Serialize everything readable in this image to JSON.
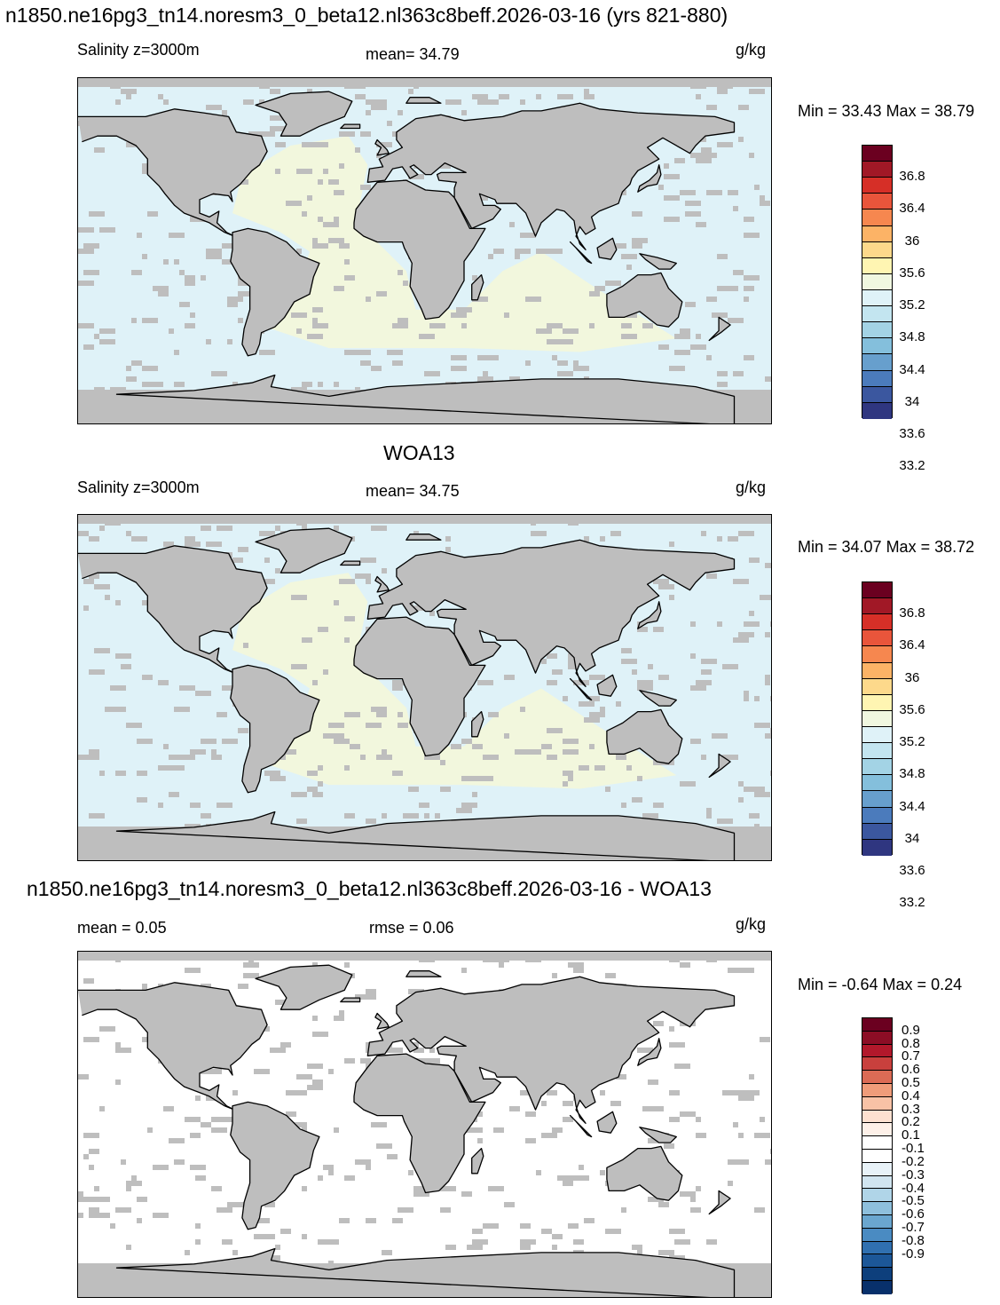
{
  "panel1": {
    "title": "n1850.ne16pg3_tn14.noresm3_0_beta12.nl363c8beff.2026-03-16 (yrs 821-880)",
    "left_label": "Salinity z=3000m",
    "center_label": "mean=  34.79",
    "units": "g/kg",
    "minmax": "Min =  33.43 Max =  38.79",
    "ocean_base": "#dff2f8",
    "highlight": "#f2f7dd"
  },
  "panel2": {
    "title": "WOA13",
    "left_label": "Salinity z=3000m",
    "center_label": "mean=  34.75",
    "units": "g/kg",
    "minmax": "Min =  34.07 Max =  38.72",
    "ocean_base": "#dff2f8",
    "highlight": "#f2f7dd"
  },
  "panel3": {
    "title": "n1850.ne16pg3_tn14.noresm3_0_beta12.nl363c8beff.2026-03-16 - WOA13",
    "left_label": "mean =   0.05",
    "center_label": "rmse =   0.06",
    "units": "g/kg",
    "minmax": "Min =  -0.64 Max =   0.24",
    "ocean_base": "#ffffff",
    "highlight": "#ffffff"
  },
  "colorbar_abs": {
    "colors": [
      "#6b0020",
      "#a11826",
      "#d62f27",
      "#e9553b",
      "#f6874f",
      "#fcb366",
      "#fdd98b",
      "#fff5b2",
      "#f0f7e0",
      "#dff2f8",
      "#c3e5f0",
      "#a3d3e5",
      "#84bfdc",
      "#679fcd",
      "#4b7bbc",
      "#3b579f",
      "#2f3680"
    ],
    "labels": [
      "36.8",
      "36.4",
      "36",
      "35.6",
      "35.2",
      "34.8",
      "34.4",
      "34",
      "33.6",
      "33.2"
    ]
  },
  "colorbar_diff": {
    "colors": [
      "#6b0020",
      "#8c0d25",
      "#b2182b",
      "#c9403d",
      "#db6b55",
      "#ef9c7a",
      "#f8c2a6",
      "#fde0d0",
      "#fdf0e8",
      "#ffffff",
      "#ffffff",
      "#e8f2f8",
      "#d1e5f0",
      "#b0d5e8",
      "#8ebfdc",
      "#6aa6cf",
      "#4a8bc2",
      "#3070b0",
      "#1c5798",
      "#0d3f7c",
      "#08306b"
    ],
    "labels": [
      "0.9",
      "0.8",
      "0.7",
      "0.6",
      "0.5",
      "0.4",
      "0.3",
      "0.2",
      "0.1",
      "-0.1",
      "-0.2",
      "-0.3",
      "-0.4",
      "-0.5",
      "-0.6",
      "-0.7",
      "-0.8",
      "-0.9"
    ]
  }
}
